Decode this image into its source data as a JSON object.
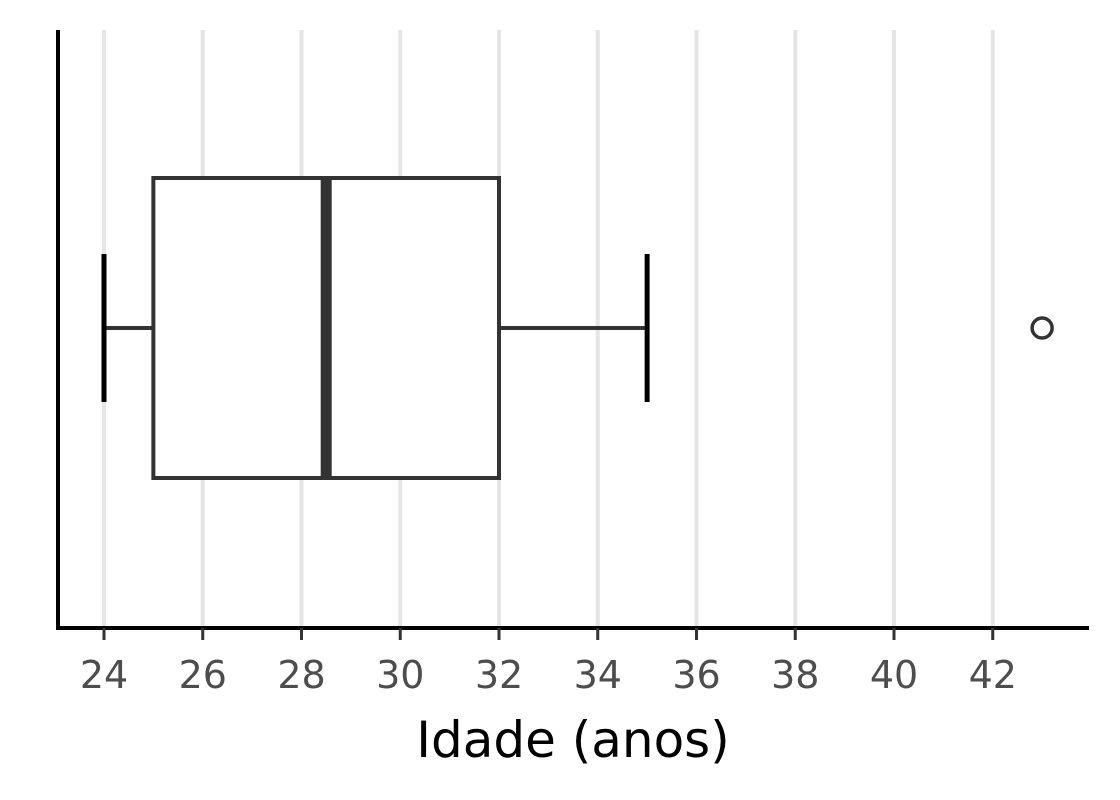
{
  "chart_data": {
    "type": "boxplot",
    "orientation": "horizontal",
    "title": "",
    "xlabel": "Idade (anos)",
    "ylabel": "",
    "xlim": [
      23.1,
      43.9
    ],
    "xticks": [
      24,
      26,
      28,
      30,
      32,
      34,
      36,
      38,
      40,
      42
    ],
    "xtick_labels": [
      "24",
      "26",
      "28",
      "30",
      "32",
      "34",
      "36",
      "38",
      "40",
      "42"
    ],
    "grid": "vertical-major",
    "series": [
      {
        "min": 24,
        "q1": 25,
        "median": 28.5,
        "q3": 32,
        "max": 35,
        "outliers": [
          43
        ]
      }
    ],
    "colors": {
      "box_line": "#333333",
      "box_fill": "#ffffff",
      "grid": "#e5e5e5",
      "axis": "#000000",
      "tick_label": "#4d4d4d"
    }
  }
}
